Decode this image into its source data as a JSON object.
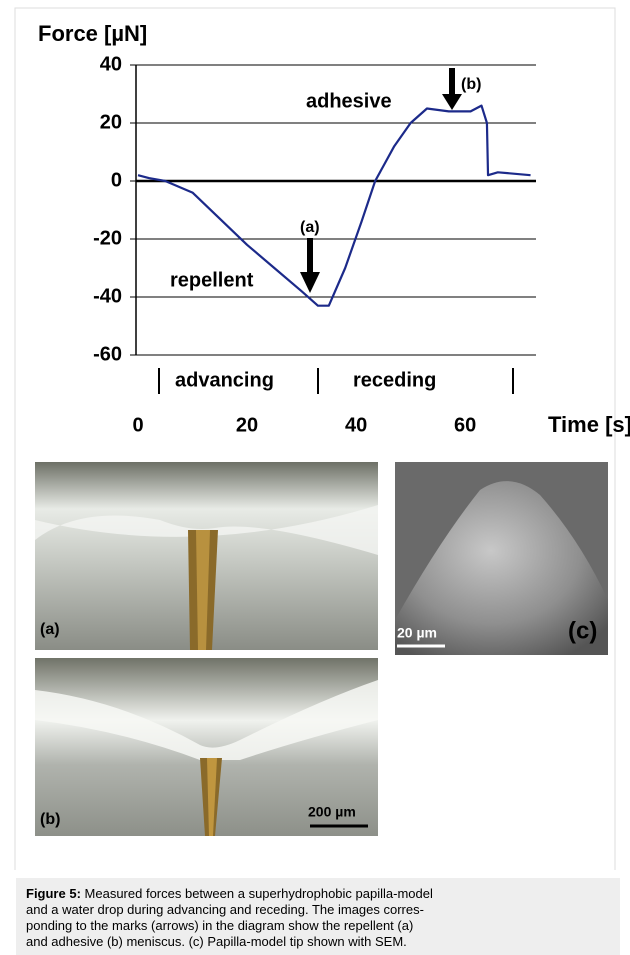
{
  "chart_data": {
    "type": "line",
    "y_label": "Force [µN]",
    "x_label": "Time [s]",
    "x": [
      0,
      2,
      5,
      10,
      15,
      20,
      25,
      30,
      33,
      35,
      38,
      41,
      43.5,
      47,
      50,
      53,
      57,
      61,
      63,
      64,
      64.2,
      66,
      72
    ],
    "series": [
      {
        "color": "#1c2a8a",
        "values": [
          2,
          1,
          0,
          -4,
          -13,
          -22,
          -30,
          -38,
          -43,
          -43,
          -30,
          -14,
          0,
          12,
          20,
          25,
          24,
          24,
          26,
          20,
          2,
          3,
          2
        ]
      }
    ],
    "xlim": [
      0,
      73
    ],
    "ylim": [
      -60,
      40
    ],
    "xticks": [
      0,
      20,
      40,
      60
    ],
    "yticks": [
      -60,
      -40,
      -20,
      0,
      20,
      40
    ],
    "grid": true,
    "annotations": [
      "(a)",
      "(b)",
      "repellent",
      "adhesive"
    ],
    "phases": [
      "advancing",
      "receding"
    ]
  },
  "photos": {
    "a_label": "(a)",
    "b_label": "(b)",
    "c_label": "(c)",
    "b_scale": "200 µm",
    "c_scale": "20 µm"
  },
  "caption": {
    "label": "Figure 5:",
    "lines": [
      "Measured forces between a superhydrophobic papilla-model",
      "and a water drop during advancing and receding. The images corres-",
      "ponding to the marks (arrows) in the diagram show the repellent (a)",
      "and adhesive (b) meniscus. (c) Papilla-model tip shown with SEM."
    ]
  }
}
